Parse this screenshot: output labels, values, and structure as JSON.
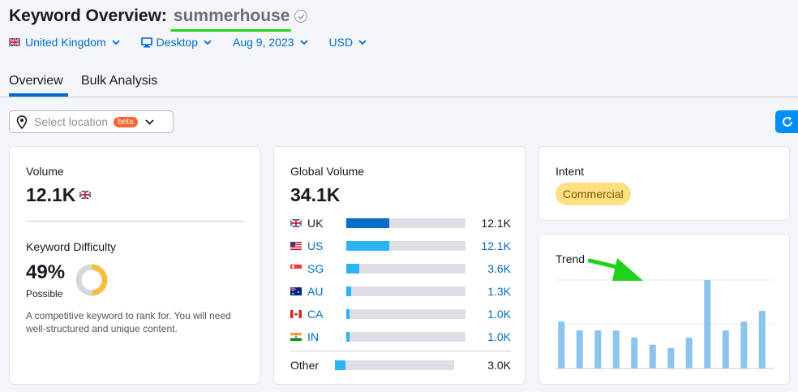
{
  "header": {
    "title_label": "Keyword Overview:",
    "keyword": "summerhouse"
  },
  "filters": {
    "country": "United Kingdom",
    "device": "Desktop",
    "date": "Aug 9, 2023",
    "currency": "USD"
  },
  "tabs": [
    {
      "label": "Overview",
      "active": true
    },
    {
      "label": "Bulk Analysis",
      "active": false
    }
  ],
  "location": {
    "placeholder": "Select location",
    "badge": "beta"
  },
  "volume_card": {
    "label": "Volume",
    "value": "12.1K",
    "kd_label": "Keyword Difficulty",
    "kd_value": "49%",
    "kd_level": "Possible",
    "kd_percent": 49,
    "kd_description": "A competitive keyword to rank for. You will need well-structured and unique content."
  },
  "global_card": {
    "label": "Global Volume",
    "value": "34.1K",
    "countries": [
      {
        "code": "UK",
        "value": "12.1K",
        "share": 0.36,
        "color": "#006dca",
        "link": false
      },
      {
        "code": "US",
        "value": "12.1K",
        "share": 0.36,
        "color": "#2bb3f5",
        "link": true
      },
      {
        "code": "SG",
        "value": "3.6K",
        "share": 0.11,
        "color": "#2bb3f5",
        "link": true
      },
      {
        "code": "AU",
        "value": "1.3K",
        "share": 0.04,
        "color": "#2bb3f5",
        "link": true
      },
      {
        "code": "CA",
        "value": "1.0K",
        "share": 0.03,
        "color": "#2bb3f5",
        "link": true
      },
      {
        "code": "IN",
        "value": "1.0K",
        "share": 0.03,
        "color": "#2bb3f5",
        "link": true
      }
    ],
    "other": {
      "code": "Other",
      "value": "3.0K",
      "share": 0.09,
      "color": "#2bb3f5"
    }
  },
  "intent_card": {
    "label": "Intent",
    "value": "Commercial"
  },
  "trend_card": {
    "label": "Trend"
  },
  "chart_data": {
    "type": "bar",
    "title": "Trend",
    "values": [
      0.53,
      0.43,
      0.43,
      0.43,
      0.35,
      0.27,
      0.23,
      0.35,
      1.0,
      0.43,
      0.53,
      0.65
    ],
    "ylim": [
      0,
      1
    ],
    "grid": true,
    "bar_color": "#8cc4ed"
  }
}
